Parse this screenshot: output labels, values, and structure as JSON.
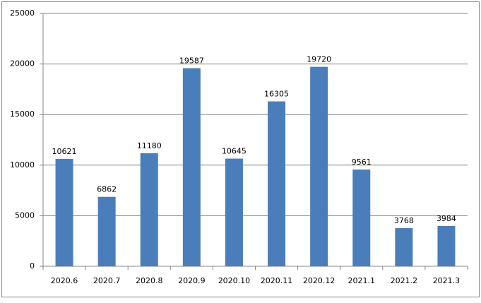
{
  "chart_data": {
    "type": "bar",
    "categories": [
      "2020.6",
      "2020.7",
      "2020.8",
      "2020.9",
      "2020.10",
      "2020.11",
      "2020.12",
      "2021.1",
      "2021.2",
      "2021.3"
    ],
    "values": [
      10621,
      6862,
      11180,
      19587,
      10645,
      16305,
      19720,
      9561,
      3768,
      3984
    ],
    "color": "#4a7ebb",
    "ylim": [
      0,
      25000
    ],
    "yticks": [
      0,
      5000,
      10000,
      15000,
      20000,
      25000
    ],
    "grid": true
  }
}
